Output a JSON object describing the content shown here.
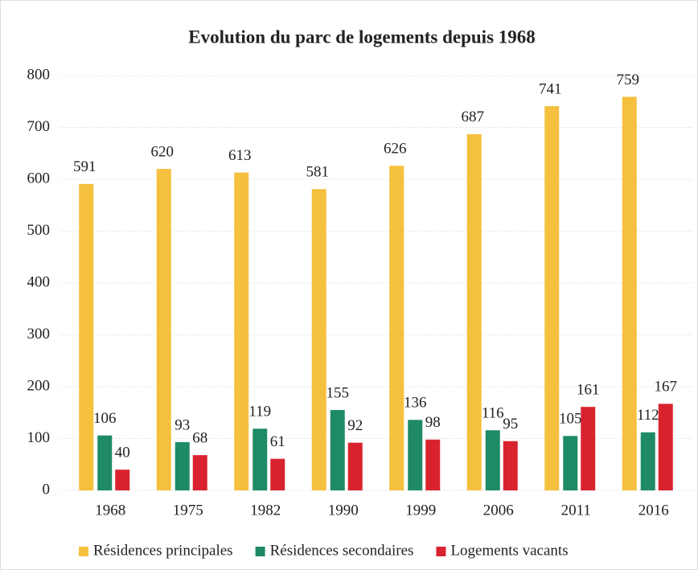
{
  "chart_data": {
    "type": "bar",
    "title": "Evolution du parc de logements depuis 1968",
    "categories": [
      "1968",
      "1975",
      "1982",
      "1990",
      "1999",
      "2006",
      "2011",
      "2016"
    ],
    "series": [
      {
        "name": "Résidences principales",
        "color": "#f5c03e",
        "values": [
          591,
          620,
          613,
          581,
          626,
          687,
          741,
          759
        ]
      },
      {
        "name": "Résidences secondaires",
        "color": "#1e8a66",
        "values": [
          106,
          93,
          119,
          155,
          136,
          116,
          105,
          112
        ]
      },
      {
        "name": "Logements vacants",
        "color": "#d8232f",
        "values": [
          40,
          68,
          61,
          92,
          98,
          95,
          161,
          167
        ]
      }
    ],
    "ylim": [
      0,
      800
    ],
    "yticks": [
      0,
      100,
      200,
      300,
      400,
      500,
      600,
      700,
      800
    ],
    "grid": true,
    "legend": "bottom"
  }
}
